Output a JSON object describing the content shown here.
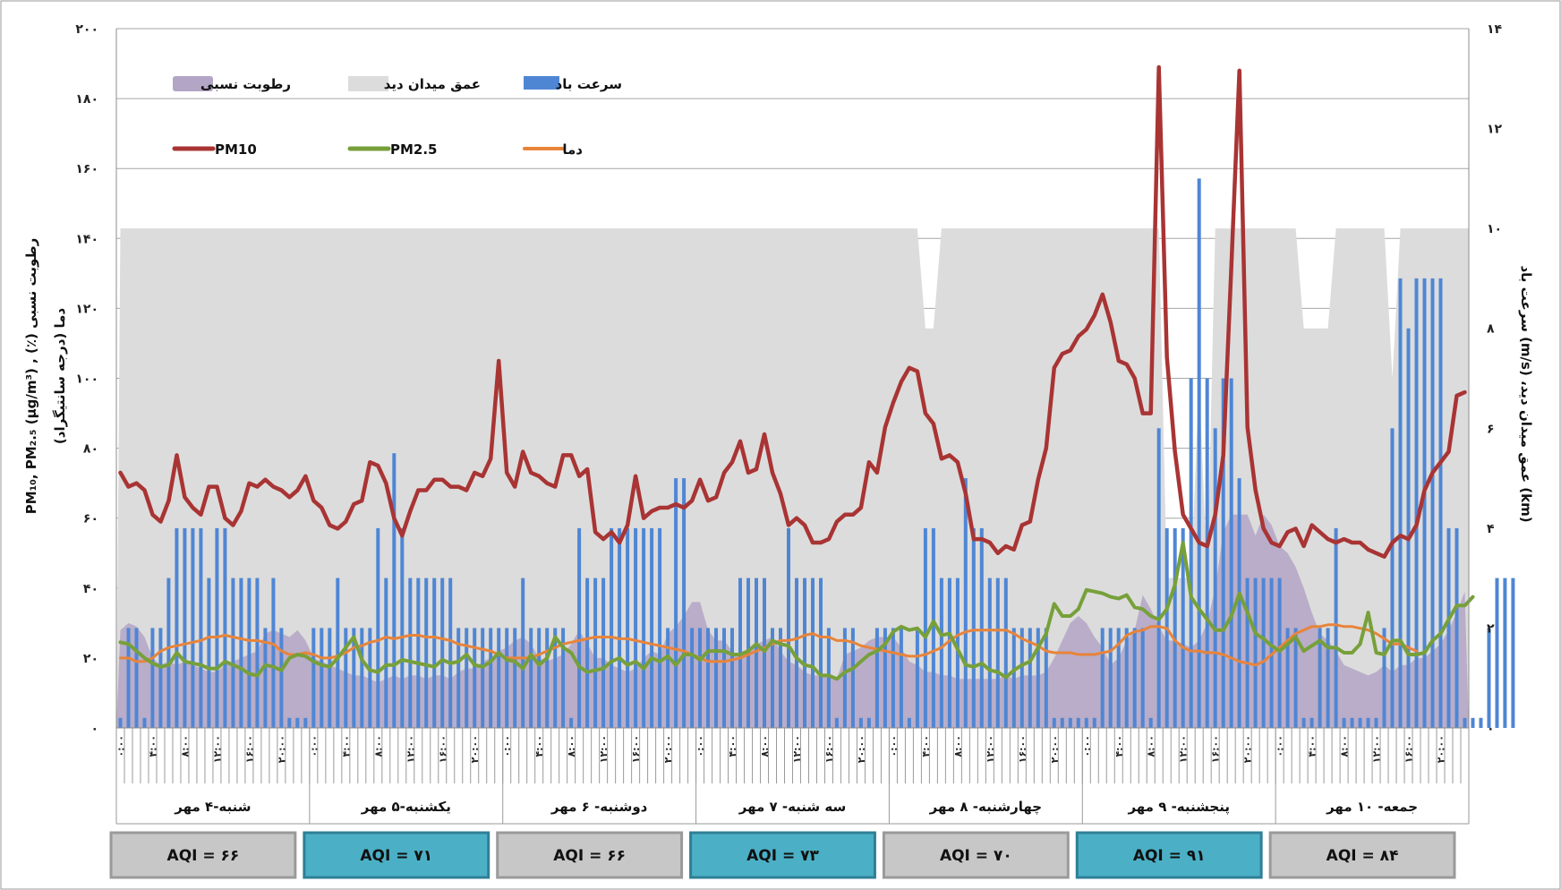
{
  "colors": {
    "pm10": "#a93434",
    "pm25": "#77a03a",
    "temp": "#e8843a",
    "wind": "#4f86d4",
    "visibility": "#dcdcdc",
    "humidity": "#b3a5c6",
    "aqi_gray": "#c7c7c7",
    "aqi_teal": "#4bb0c6"
  },
  "chart_data": {
    "type": "line",
    "y_left": {
      "ticks": [
        "۰",
        "۲۰",
        "۴۰",
        "۶۰",
        "۸۰",
        "۱۰۰",
        "۱۲۰",
        "۱۴۰",
        "۱۶۰",
        "۱۸۰",
        "۲۰۰"
      ],
      "range": [
        0,
        200
      ]
    },
    "y_right": {
      "ticks": [
        "۰",
        "۲",
        "۴",
        "۶",
        "۸",
        "۱۰",
        "۱۲",
        "۱۴"
      ],
      "range": [
        0,
        14
      ]
    },
    "y_left_title_line1": "PM₁₀, PM₂.₅ (µg/m³) ,  (٪) رطوبت نسبی",
    "y_left_title_line2": "دما (درجه سانتیگراد)",
    "y_right_title": "سرعت باد (m/s) ،عمق میدان دید  (km)",
    "hour_labels": [
      "۰:۰۰",
      "",
      "",
      "",
      "۴:۰۰",
      "",
      "",
      "",
      "۸:۰۰",
      "",
      "",
      "",
      "۱۲:۰۰",
      "",
      "",
      "",
      "۱۶:۰۰",
      "",
      "",
      "",
      "۲۰:۰۰",
      "",
      "",
      ""
    ],
    "days": [
      "شنبه-۴ مهر",
      "یکشنبه-۵ مهر",
      "دوشنبه- ۶ مهر",
      "سه شنبه- ۷ مهر",
      "چهارشنبه- ۸ مهر",
      "پنجشنبه- ۹ مهر",
      "جمعه- ۱۰ مهر"
    ],
    "aqi": [
      "AQI = ۶۶",
      "AQI = ۷۱",
      "AQI = ۶۶",
      "AQI = ۷۳",
      "AQI = ۷۰",
      "AQI = ۹۱",
      "AQI = ۸۴"
    ],
    "aqi_style": [
      "gray",
      "teal",
      "gray",
      "teal",
      "gray",
      "teal",
      "gray"
    ],
    "legend": {
      "humidity": "رطوبت نسبی",
      "visibility": "عمق میدان دید",
      "wind": "سرعت باد",
      "pm10": "PM10",
      "pm25": "PM2.5",
      "temp": "دما"
    },
    "series": [
      {
        "name": "PM10",
        "axis": "left",
        "values": [
          73,
          69,
          70,
          68,
          61,
          59,
          65,
          78,
          66,
          63,
          61,
          69,
          69,
          60,
          58,
          62,
          70,
          69,
          71,
          69,
          68,
          66,
          68,
          72,
          65,
          63,
          58,
          57,
          59,
          64,
          65,
          76,
          75,
          70,
          60,
          55,
          62,
          68,
          68,
          71,
          71,
          69,
          69,
          68,
          73,
          72,
          77,
          105,
          73,
          69,
          79,
          73,
          72,
          70,
          69,
          78,
          78,
          72,
          74,
          56,
          54,
          56,
          53,
          58,
          72,
          60,
          62,
          63,
          63,
          64,
          63,
          65,
          71,
          65,
          66,
          73,
          76,
          82,
          73,
          74,
          84,
          73,
          67,
          58,
          60,
          58,
          53,
          53,
          54,
          59,
          61,
          61,
          63,
          76,
          73,
          86,
          93,
          99,
          103,
          102,
          90,
          87,
          77,
          78,
          76,
          67,
          54,
          54,
          53,
          50,
          52,
          51,
          58,
          59,
          71,
          80,
          103,
          107,
          108,
          112,
          114,
          118,
          124,
          116,
          105,
          104,
          100,
          90,
          90,
          189,
          106,
          79,
          61,
          57,
          53,
          52,
          61,
          78,
          132,
          188,
          86,
          68,
          57,
          53,
          52,
          56,
          57,
          52,
          58,
          56,
          54,
          53,
          54,
          53,
          53,
          51,
          50,
          49,
          53,
          55,
          54,
          58,
          68,
          73,
          76,
          79,
          95,
          96
        ]
      },
      {
        "name": "PM2.5",
        "axis": "left",
        "values": [
          24.5,
          24,
          22,
          20,
          18.5,
          17.5,
          18,
          21.5,
          19,
          18.5,
          18,
          17,
          17,
          19,
          18,
          17,
          15.5,
          15,
          18,
          17.5,
          16.5,
          20,
          21,
          20.5,
          19,
          18,
          17.5,
          20,
          23,
          26,
          19.5,
          16.5,
          16,
          18,
          18,
          19.5,
          19,
          18.5,
          18,
          17.5,
          19.5,
          18.5,
          19,
          21,
          18,
          17.5,
          19,
          21.5,
          19.5,
          19,
          17,
          21,
          18,
          20,
          26,
          23,
          21.5,
          17.5,
          16,
          16.5,
          17,
          19,
          20,
          18,
          19,
          17,
          20,
          19,
          20.5,
          18,
          21,
          21,
          19.5,
          22,
          22,
          22,
          21,
          21,
          22,
          24,
          22,
          25,
          24,
          23.5,
          20,
          18,
          17.5,
          15,
          15,
          14,
          16,
          17,
          19,
          21,
          22,
          24,
          27.5,
          29,
          28,
          28.5,
          26,
          30.5,
          26.5,
          27,
          22.5,
          18,
          17.5,
          18.5,
          16.5,
          16,
          14.5,
          16.5,
          18,
          19,
          23,
          27,
          35.5,
          32,
          32,
          34,
          39.5,
          39,
          38.5,
          37.5,
          37,
          38,
          34.5,
          34,
          32,
          31,
          34,
          41,
          53,
          37.5,
          34,
          31,
          28,
          28,
          32,
          38.5,
          33,
          27,
          25.5,
          23.5,
          22,
          24,
          26,
          22,
          23.5,
          25,
          23,
          23,
          21.5,
          21.5,
          24,
          33,
          21.5,
          21,
          25,
          25,
          21,
          21,
          21.5,
          25,
          27,
          31,
          35,
          35,
          37.5
        ]
      },
      {
        "name": "temp",
        "axis": "left",
        "values": [
          20,
          20,
          19,
          19,
          20,
          22,
          23,
          23.5,
          24,
          24.5,
          25,
          26,
          26,
          26.5,
          26,
          25.5,
          25,
          25,
          24.5,
          24,
          22,
          21,
          21,
          21.5,
          21,
          20,
          20,
          20.5,
          21.5,
          23,
          23.5,
          24.5,
          25,
          26,
          25.5,
          26,
          26.5,
          26.5,
          26,
          26,
          25.5,
          25,
          24,
          23.5,
          23,
          22.5,
          22,
          21,
          20,
          20,
          20,
          20,
          21,
          22,
          23,
          24,
          24.5,
          25,
          25.5,
          26,
          26,
          26,
          25.5,
          25.5,
          25,
          24.5,
          24,
          23.5,
          23,
          22.5,
          22,
          21,
          20,
          19,
          19,
          19,
          19.5,
          20,
          21,
          22,
          23,
          24,
          25,
          25,
          25.5,
          26.5,
          27,
          26,
          26,
          25,
          25,
          24.5,
          23.5,
          23,
          22.5,
          22,
          21.5,
          21,
          20.5,
          20.5,
          21,
          22,
          23,
          25,
          26.5,
          27.5,
          28,
          28,
          28,
          28,
          28,
          27,
          25.5,
          24.5,
          23.5,
          22,
          21.5,
          21.5,
          21.5,
          21,
          21,
          21,
          21.5,
          22,
          24,
          26.5,
          27.5,
          28,
          29,
          29,
          28.5,
          25,
          23,
          22,
          22,
          21.5,
          21.5,
          21,
          20,
          19,
          18.5,
          18,
          19,
          21,
          23,
          25,
          27,
          28,
          29,
          29,
          29.5,
          29.5,
          29,
          29,
          28.5,
          28,
          27,
          25.5,
          24,
          24,
          23,
          22
        ]
      },
      {
        "name": "humidity",
        "axis": "left",
        "values": [
          28,
          30,
          29,
          26,
          20,
          18,
          19,
          18,
          19,
          18,
          17,
          16,
          16,
          18,
          19,
          20,
          21,
          22,
          27,
          28,
          27,
          26,
          28,
          25,
          20,
          19,
          18,
          17,
          16,
          15,
          15,
          14,
          13,
          14,
          15,
          14,
          15,
          15,
          14,
          15,
          15,
          14,
          16,
          17,
          17,
          19,
          20,
          22,
          23,
          25,
          26,
          24,
          20,
          19,
          20,
          21,
          24,
          28,
          24,
          20,
          20,
          18,
          17,
          16,
          17,
          20,
          22,
          21,
          27,
          29,
          32,
          36,
          36,
          28,
          25,
          25,
          22,
          20,
          22,
          24,
          25,
          26,
          22,
          19,
          18,
          16,
          15,
          15,
          15,
          14,
          21,
          22,
          23,
          25,
          26,
          26,
          26,
          23,
          19,
          18,
          16,
          16,
          15,
          15,
          14,
          14,
          14,
          14,
          14,
          14,
          15,
          14,
          15,
          15,
          15,
          16,
          20,
          25,
          30,
          32,
          30,
          26,
          23,
          18,
          20,
          25,
          28,
          38,
          34,
          29,
          25,
          25,
          24,
          23,
          25,
          30,
          40,
          56,
          61,
          61,
          61,
          55,
          61,
          58,
          52,
          50,
          46,
          40,
          33,
          27,
          25,
          22,
          18,
          17,
          16,
          15,
          16,
          18,
          16,
          18,
          18,
          20,
          20,
          22,
          24,
          28,
          33,
          39
        ]
      },
      {
        "name": "wind",
        "axis": "right",
        "values": [
          0.2,
          2,
          2,
          0.2,
          2,
          2,
          3,
          4,
          4,
          4,
          4,
          3,
          4,
          4,
          3,
          3,
          3,
          3,
          2,
          3,
          2,
          0.2,
          0.2,
          0.2,
          2,
          2,
          2,
          3,
          2,
          2,
          2,
          2,
          4,
          3,
          5.5,
          4,
          3,
          3,
          3,
          3,
          3,
          3,
          2,
          2,
          2,
          2,
          2,
          2,
          2,
          2,
          3,
          2,
          2,
          2,
          2,
          2,
          0.2,
          4,
          3,
          3,
          3,
          4,
          4,
          4,
          4,
          4,
          4,
          4,
          2,
          5,
          5,
          2,
          2,
          2,
          2,
          2,
          2,
          3,
          3,
          3,
          3,
          2,
          2,
          4,
          3,
          3,
          3,
          3,
          2,
          0.2,
          2,
          2,
          0.2,
          0.2,
          2,
          2,
          2,
          2,
          0.2,
          2,
          4,
          4,
          3,
          3,
          3,
          5,
          4,
          4,
          3,
          3,
          3,
          2,
          2,
          2,
          2,
          2,
          0.2,
          0.2,
          0.2,
          0.2,
          0.2,
          0.2,
          2,
          2,
          2,
          2,
          2,
          2,
          0.2,
          6,
          4,
          4,
          4,
          7,
          11,
          7,
          6,
          7,
          7,
          5,
          3,
          3,
          3,
          3,
          3,
          2,
          2,
          0.2,
          0.2,
          2,
          2,
          4,
          0.2,
          0.2,
          0.2,
          0.2,
          0.2,
          2,
          6,
          9,
          8,
          9,
          9,
          9,
          9,
          4,
          4,
          0.2,
          0.2,
          0.2,
          2,
          3,
          3,
          3
        ]
      },
      {
        "name": "visibility",
        "axis": "right",
        "values": [
          10,
          10,
          10,
          10,
          10,
          10,
          10,
          10,
          10,
          10,
          10,
          10,
          10,
          10,
          10,
          10,
          10,
          10,
          10,
          10,
          10,
          10,
          10,
          10,
          10,
          10,
          10,
          10,
          10,
          10,
          10,
          10,
          10,
          10,
          10,
          10,
          10,
          10,
          10,
          10,
          10,
          10,
          10,
          10,
          10,
          10,
          10,
          10,
          10,
          10,
          10,
          10,
          10,
          10,
          10,
          10,
          10,
          10,
          10,
          10,
          10,
          10,
          10,
          10,
          10,
          10,
          10,
          10,
          10,
          10,
          10,
          10,
          10,
          10,
          10,
          10,
          10,
          10,
          10,
          10,
          10,
          10,
          10,
          10,
          10,
          10,
          10,
          10,
          10,
          10,
          10,
          10,
          10,
          10,
          10,
          10,
          10,
          10,
          10,
          10,
          8,
          8,
          10,
          10,
          10,
          10,
          10,
          10,
          10,
          10,
          10,
          10,
          10,
          10,
          10,
          10,
          10,
          10,
          10,
          10,
          10,
          10,
          10,
          10,
          10,
          10,
          10,
          10,
          10,
          10,
          3,
          3,
          3,
          3,
          7,
          3,
          10,
          10,
          10,
          10,
          10,
          10,
          10,
          10,
          10,
          10,
          10,
          8,
          8,
          8,
          8,
          10,
          10,
          10,
          10,
          10,
          10,
          10,
          7,
          10,
          10,
          10,
          10,
          10,
          10,
          10,
          10,
          10
        ]
      }
    ]
  }
}
